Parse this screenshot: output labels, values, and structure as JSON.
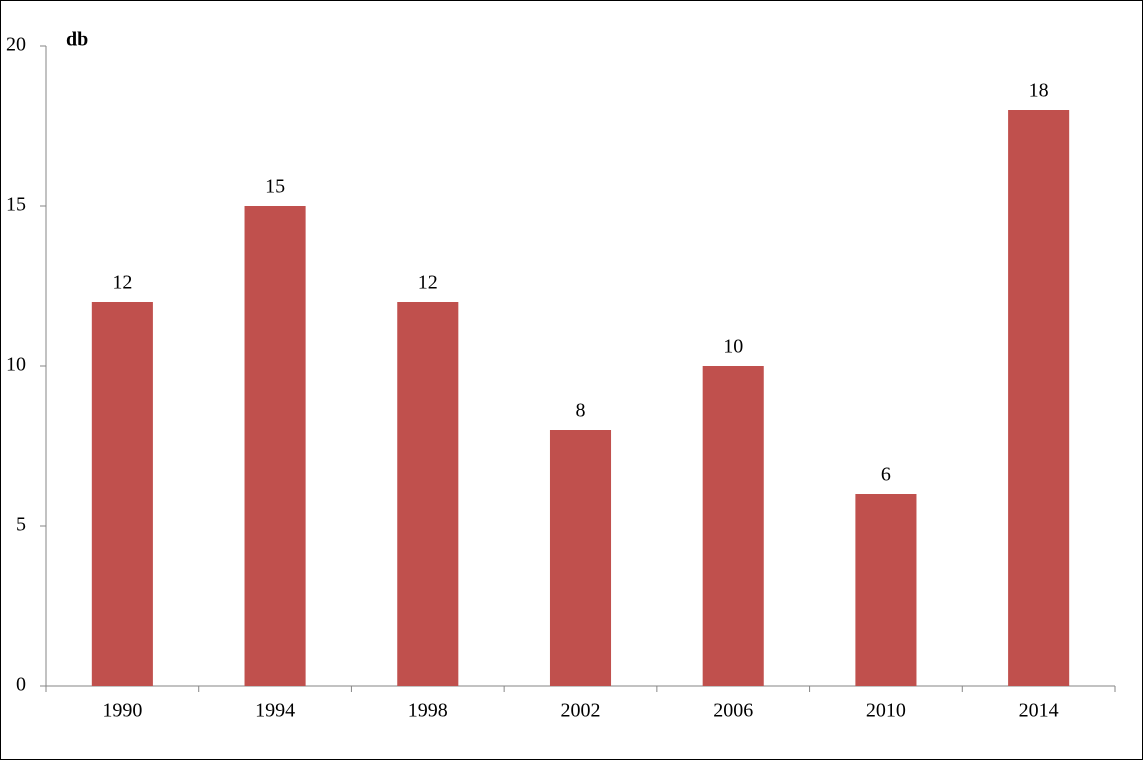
{
  "chart_data": {
    "type": "bar",
    "y_label": "db",
    "categories": [
      "1990",
      "1994",
      "1998",
      "2002",
      "2006",
      "2010",
      "2014"
    ],
    "values": [
      12,
      15,
      12,
      8,
      10,
      6,
      18
    ],
    "color": "#c0504d",
    "ylim": [
      0,
      20
    ],
    "yticks": [
      0,
      5,
      10,
      15,
      20
    ],
    "grid": false,
    "data_labels": true
  }
}
